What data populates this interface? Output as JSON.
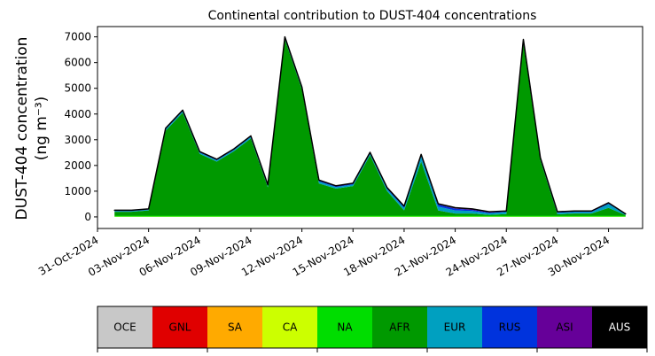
{
  "chart_data": {
    "type": "stacked_area",
    "title": "Continental contribution to DUST-404 concentrations",
    "ylabel": [
      "DUST-404 concentration",
      "(ng m⁻³)"
    ],
    "x": [
      "01-Nov-2024",
      "02-Nov-2024",
      "03-Nov-2024",
      "04-Nov-2024",
      "05-Nov-2024",
      "06-Nov-2024",
      "07-Nov-2024",
      "08-Nov-2024",
      "09-Nov-2024",
      "10-Nov-2024",
      "11-Nov-2024",
      "12-Nov-2024",
      "13-Nov-2024",
      "14-Nov-2024",
      "15-Nov-2024",
      "16-Nov-2024",
      "17-Nov-2024",
      "18-Nov-2024",
      "19-Nov-2024",
      "20-Nov-2024",
      "21-Nov-2024",
      "22-Nov-2024",
      "23-Nov-2024",
      "24-Nov-2024",
      "25-Nov-2024",
      "26-Nov-2024",
      "27-Nov-2024",
      "28-Nov-2024",
      "29-Nov-2024",
      "30-Nov-2024",
      "01-Dec-2024"
    ],
    "xlim": [
      "31-Oct-2024",
      "02-Dec-2024"
    ],
    "xticks": [
      "31-Oct-2024",
      "03-Nov-2024",
      "06-Nov-2024",
      "09-Nov-2024",
      "12-Nov-2024",
      "15-Nov-2024",
      "18-Nov-2024",
      "21-Nov-2024",
      "24-Nov-2024",
      "27-Nov-2024",
      "30-Nov-2024"
    ],
    "ylim": [
      -450,
      7400
    ],
    "yticks": [
      0,
      1000,
      2000,
      3000,
      4000,
      5000,
      6000,
      7000
    ],
    "series": [
      {
        "name": "OCE",
        "color": "#c8c8c8",
        "values": [
          0,
          0,
          0,
          0,
          0,
          0,
          0,
          0,
          0,
          0,
          0,
          0,
          0,
          0,
          0,
          0,
          0,
          0,
          0,
          0,
          0,
          0,
          0,
          0,
          0,
          0,
          0,
          0,
          0,
          0,
          0
        ]
      },
      {
        "name": "GNL",
        "color": "#e00000",
        "values": [
          0,
          0,
          0,
          0,
          0,
          0,
          0,
          0,
          0,
          0,
          0,
          0,
          0,
          0,
          0,
          0,
          0,
          0,
          0,
          0,
          0,
          0,
          0,
          0,
          0,
          0,
          0,
          0,
          0,
          0,
          0
        ]
      },
      {
        "name": "SA",
        "color": "#ffaa00",
        "values": [
          0,
          0,
          0,
          0,
          0,
          0,
          0,
          0,
          0,
          0,
          0,
          0,
          0,
          0,
          0,
          0,
          0,
          0,
          0,
          0,
          0,
          0,
          0,
          0,
          0,
          0,
          0,
          0,
          0,
          0,
          0
        ]
      },
      {
        "name": "CA",
        "color": "#ccff00",
        "values": [
          10,
          10,
          10,
          10,
          10,
          10,
          10,
          10,
          10,
          10,
          10,
          10,
          10,
          10,
          10,
          10,
          10,
          10,
          10,
          10,
          10,
          10,
          10,
          10,
          10,
          10,
          10,
          10,
          10,
          10,
          10
        ]
      },
      {
        "name": "NA",
        "color": "#00dd00",
        "values": [
          40,
          40,
          40,
          40,
          40,
          40,
          40,
          40,
          40,
          40,
          40,
          40,
          40,
          40,
          40,
          40,
          40,
          40,
          40,
          40,
          40,
          40,
          40,
          40,
          40,
          40,
          40,
          40,
          40,
          40,
          40
        ]
      },
      {
        "name": "AFR",
        "color": "#009900",
        "values": [
          150,
          150,
          200,
          3300,
          4000,
          2400,
          2100,
          2500,
          3000,
          1100,
          6850,
          4900,
          1250,
          1050,
          1150,
          2350,
          950,
          200,
          2100,
          200,
          80,
          80,
          30,
          60,
          6700,
          2150,
          50,
          80,
          80,
          300,
          20
        ]
      },
      {
        "name": "EUR",
        "color": "#00a0c0",
        "values": [
          30,
          30,
          30,
          60,
          60,
          50,
          50,
          50,
          60,
          60,
          60,
          60,
          80,
          60,
          60,
          60,
          80,
          100,
          200,
          150,
          120,
          100,
          60,
          80,
          100,
          60,
          60,
          60,
          60,
          150,
          30
        ]
      },
      {
        "name": "RUS",
        "color": "#0033dd",
        "values": [
          10,
          10,
          10,
          20,
          20,
          20,
          20,
          20,
          20,
          20,
          20,
          20,
          30,
          30,
          30,
          30,
          40,
          50,
          60,
          80,
          70,
          40,
          30,
          20,
          30,
          20,
          20,
          20,
          20,
          30,
          10
        ]
      },
      {
        "name": "ASI",
        "color": "#660099",
        "values": [
          20,
          20,
          20,
          20,
          20,
          20,
          20,
          20,
          20,
          20,
          20,
          20,
          20,
          20,
          20,
          20,
          20,
          20,
          20,
          30,
          40,
          40,
          30,
          20,
          20,
          20,
          20,
          20,
          20,
          20,
          10
        ]
      },
      {
        "name": "AUS",
        "color": "#000000",
        "values": [
          0,
          0,
          0,
          0,
          0,
          0,
          0,
          0,
          0,
          0,
          0,
          0,
          0,
          0,
          0,
          0,
          0,
          0,
          0,
          0,
          0,
          0,
          0,
          0,
          0,
          0,
          0,
          0,
          0,
          0,
          0
        ]
      }
    ]
  }
}
